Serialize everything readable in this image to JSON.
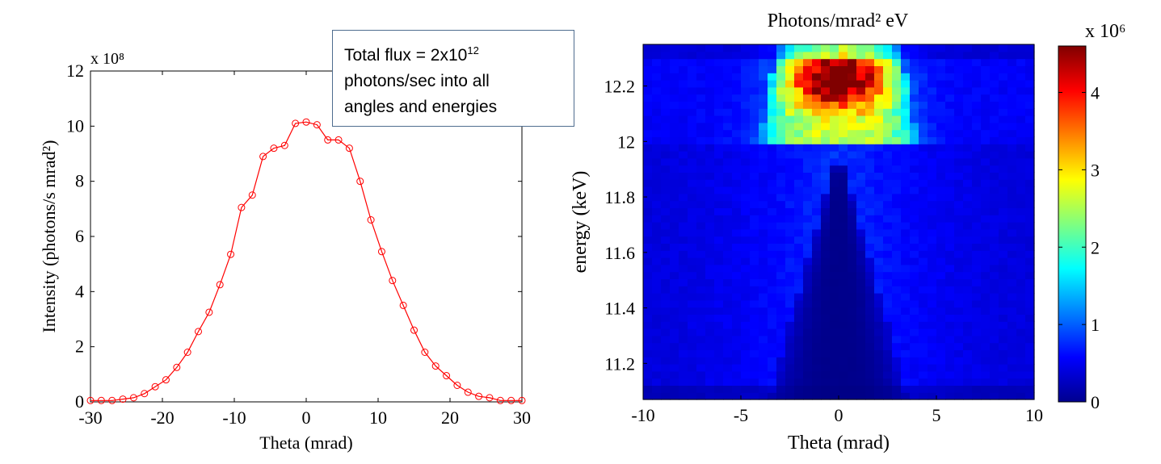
{
  "chart_data": [
    {
      "type": "line",
      "xlabel": "Theta (mrad)",
      "ylabel": "Intensity (photons/s mrad²)",
      "y_multiplier": "x 10⁸",
      "xlim": [
        -30,
        30
      ],
      "ylim": [
        0,
        12
      ],
      "x_ticks": [
        "-30",
        "-20",
        "-10",
        "0",
        "10",
        "20",
        "30"
      ],
      "y_ticks": [
        "0",
        "2",
        "4",
        "6",
        "8",
        "10",
        "12"
      ],
      "marker": "circle",
      "color": "#ff0000",
      "grid": false,
      "series": [
        {
          "x": [
            -30,
            -28.5,
            -27,
            -25.5,
            -24,
            -22.5,
            -21,
            -19.5,
            -18,
            -16.5,
            -15,
            -13.5,
            -12,
            -10.5,
            -9,
            -7.5,
            -6,
            -4.5,
            -3,
            -1.5,
            0,
            1.5,
            3,
            4.5,
            6,
            7.5,
            9,
            10.5,
            12,
            13.5,
            15,
            16.5,
            18,
            19.5,
            21,
            22.5,
            24,
            25.5,
            27,
            28.5,
            30
          ],
          "values": [
            0.05,
            0.05,
            0.05,
            0.1,
            0.15,
            0.3,
            0.55,
            0.8,
            1.25,
            1.8,
            2.55,
            3.25,
            4.25,
            5.35,
            7.05,
            7.5,
            8.9,
            9.2,
            9.3,
            10.1,
            10.15,
            10.05,
            9.5,
            9.5,
            9.2,
            8.0,
            6.6,
            5.45,
            4.4,
            3.5,
            2.6,
            1.8,
            1.3,
            0.95,
            0.6,
            0.35,
            0.2,
            0.15,
            0.05,
            0.05,
            0.05
          ]
        }
      ]
    },
    {
      "type": "heatmap",
      "title": "Photons/mrad² eV",
      "xlabel": "Theta (mrad)",
      "ylabel": "energy (keV)",
      "xlim": [
        -10,
        10
      ],
      "ylim": [
        11.07,
        12.35
      ],
      "x_ticks": [
        "-10",
        "-5",
        "0",
        "5",
        "10"
      ],
      "y_ticks": [
        "11.2",
        "11.4",
        "11.6",
        "11.8",
        "12",
        "12.2"
      ],
      "colormap": "jet",
      "colorbar": {
        "multiplier": "x 10⁶",
        "range": [
          0,
          4.6
        ],
        "ticks": [
          "0",
          "1",
          "2",
          "3",
          "4"
        ]
      },
      "grid": false
    }
  ],
  "annotation": {
    "line1_prefix": "Total flux = 2x10",
    "line1_exp": "12",
    "line2": "photons/sec into all",
    "line3": "angles and energies"
  }
}
